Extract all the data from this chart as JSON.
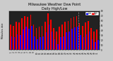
{
  "title": "Milwaukee Weather Dew Point",
  "subtitle": "Daily High/Low",
  "ylim": [
    0,
    80
  ],
  "yticks": [
    0,
    10,
    20,
    30,
    40,
    50,
    60,
    70,
    80
  ],
  "plot_bg": "#222222",
  "fig_bg": "#cccccc",
  "high_color": "#ff0000",
  "low_color": "#0000ff",
  "legend_high": "High",
  "legend_low": "Low",
  "bar_width": 0.4,
  "dates": [
    "1",
    "2",
    "3",
    "4",
    "5",
    "6",
    "7",
    "8",
    "9",
    "10",
    "11",
    "12",
    "13",
    "14",
    "15",
    "16",
    "17",
    "18",
    "19",
    "20",
    "21",
    "22",
    "23",
    "24",
    "25",
    "26",
    "27",
    "28",
    "29",
    "30",
    "31"
  ],
  "high_values": [
    52,
    50,
    58,
    56,
    65,
    70,
    68,
    72,
    52,
    45,
    48,
    50,
    58,
    75,
    62,
    45,
    38,
    48,
    52,
    58,
    60,
    65,
    68,
    70,
    55,
    50,
    56,
    60,
    45,
    38,
    42
  ],
  "low_values": [
    28,
    26,
    32,
    30,
    42,
    48,
    44,
    50,
    28,
    22,
    26,
    28,
    36,
    52,
    38,
    22,
    12,
    26,
    28,
    36,
    38,
    44,
    46,
    48,
    30,
    26,
    32,
    38,
    22,
    16,
    20
  ],
  "vline_pos": 23.5,
  "title_fontsize": 3.5,
  "tick_fontsize": 2.0,
  "label_left": "Milwaukee, date"
}
